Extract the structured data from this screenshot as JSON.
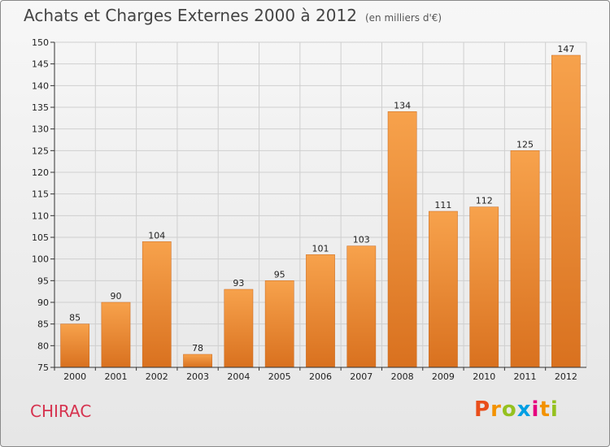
{
  "header": {
    "title": "Achats et Charges Externes 2000 à 2012",
    "subtitle": "(en milliers d'€)"
  },
  "commune": "CHIRAC",
  "logo": {
    "letters": [
      "P",
      "r",
      "o",
      "x",
      "i",
      "t",
      "i"
    ],
    "colors": [
      "#e94e1b",
      "#f39200",
      "#95c11f",
      "#009fe3",
      "#e6007e",
      "#f39200",
      "#95c11f"
    ]
  },
  "chart_data": {
    "type": "bar",
    "title": "Achats et Charges Externes 2000 à 2012",
    "subtitle": "(en milliers d'€)",
    "categories": [
      "2000",
      "2001",
      "2002",
      "2003",
      "2004",
      "2005",
      "2006",
      "2007",
      "2008",
      "2009",
      "2010",
      "2011",
      "2012"
    ],
    "values": [
      85,
      90,
      104,
      78,
      93,
      95,
      101,
      103,
      134,
      111,
      112,
      125,
      147
    ],
    "ylim": [
      75,
      150
    ],
    "yticks": [
      75,
      80,
      85,
      90,
      95,
      100,
      105,
      110,
      115,
      120,
      125,
      130,
      135,
      140,
      145,
      150
    ],
    "grid": true,
    "colors": {
      "bar_light": "#f7a24c",
      "bar_dark": "#d9711f",
      "grid": "#cfcfcf"
    }
  }
}
